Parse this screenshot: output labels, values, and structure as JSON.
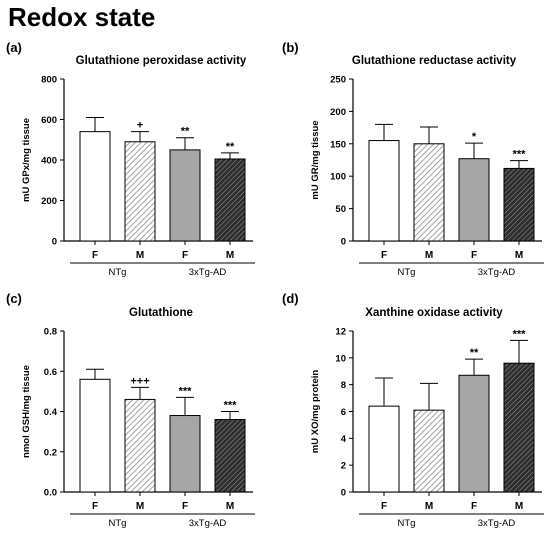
{
  "page_title": "Redox state",
  "chart_data": [
    {
      "panel_label": "(a)",
      "type": "bar",
      "title": "Glutathione peroxidase activity",
      "ylabel": "mU GPx/mg tissue",
      "ylim": [
        0,
        800
      ],
      "yticks": [
        0,
        200,
        400,
        600,
        800
      ],
      "categories": [
        "F",
        "M",
        "F",
        "M"
      ],
      "groups": [
        {
          "name": "NTg",
          "span": [
            0,
            1
          ]
        },
        {
          "name": "3xTg-AD",
          "span": [
            2,
            3
          ]
        }
      ],
      "values": [
        540,
        490,
        450,
        405
      ],
      "errors": [
        70,
        50,
        60,
        30
      ],
      "fills": [
        "white",
        "hatch",
        "gray",
        "darkhatch"
      ],
      "annotations": [
        "",
        "+",
        "**",
        "**"
      ]
    },
    {
      "panel_label": "(b)",
      "type": "bar",
      "title": "Glutathione reductase activity",
      "ylabel": "mU GR/mg tissue",
      "ylim": [
        0,
        250
      ],
      "yticks": [
        0,
        50,
        100,
        150,
        200,
        250
      ],
      "categories": [
        "F",
        "M",
        "F",
        "M"
      ],
      "groups": [
        {
          "name": "NTg",
          "span": [
            0,
            1
          ]
        },
        {
          "name": "3xTg-AD",
          "span": [
            2,
            3
          ]
        }
      ],
      "values": [
        155,
        150,
        127,
        112
      ],
      "errors": [
        25,
        26,
        24,
        12
      ],
      "fills": [
        "white",
        "hatch",
        "gray",
        "darkhatch"
      ],
      "annotations": [
        "",
        "",
        "*",
        "***"
      ]
    },
    {
      "panel_label": "(c)",
      "type": "bar",
      "title": "Glutathione",
      "ylabel": "nmol GSH/mg tissue",
      "ylim": [
        0,
        0.8
      ],
      "yticks": [
        "0.0",
        "0.2",
        "0.4",
        "0.6",
        "0.8"
      ],
      "categories": [
        "F",
        "M",
        "F",
        "M"
      ],
      "groups": [
        {
          "name": "NTg",
          "span": [
            0,
            1
          ]
        },
        {
          "name": "3xTg-AD",
          "span": [
            2,
            3
          ]
        }
      ],
      "values": [
        0.56,
        0.46,
        0.38,
        0.36
      ],
      "errors": [
        0.05,
        0.06,
        0.09,
        0.04
      ],
      "fills": [
        "white",
        "hatch",
        "gray",
        "darkhatch"
      ],
      "annotations": [
        "",
        "+++",
        "***",
        "***"
      ]
    },
    {
      "panel_label": "(d)",
      "type": "bar",
      "title": "Xanthine oxidase activity",
      "ylabel": "mU XO/mg protein",
      "ylim": [
        0,
        12
      ],
      "yticks": [
        0,
        2,
        4,
        6,
        8,
        10,
        12
      ],
      "categories": [
        "F",
        "M",
        "F",
        "M"
      ],
      "groups": [
        {
          "name": "NTg",
          "span": [
            0,
            1
          ]
        },
        {
          "name": "3xTg-AD",
          "span": [
            2,
            3
          ]
        }
      ],
      "values": [
        6.4,
        6.1,
        8.7,
        9.6
      ],
      "errors": [
        2.1,
        2.0,
        1.2,
        1.7
      ],
      "fills": [
        "white",
        "hatch",
        "gray",
        "darkhatch"
      ],
      "annotations": [
        "",
        "",
        "**",
        "***"
      ]
    }
  ],
  "colors": {
    "gray_bar": "#a6a6a6",
    "axis": "#000000",
    "hatch_light": "#9a9a9a",
    "hatch_dark": "#3a3a3a"
  }
}
